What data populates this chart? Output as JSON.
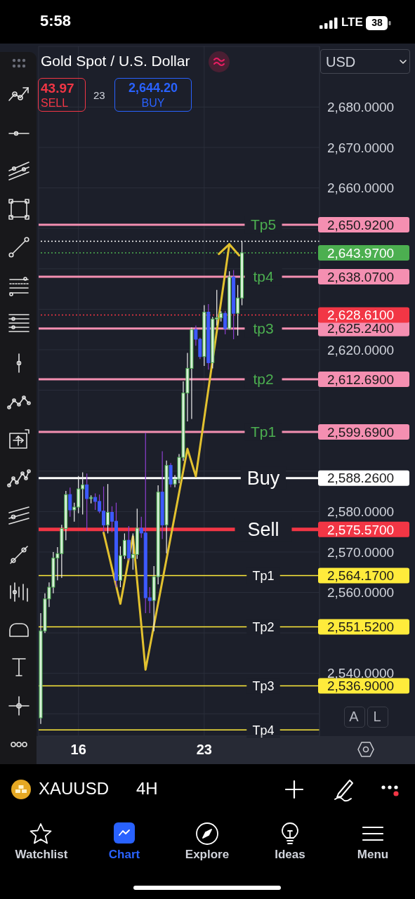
{
  "chart_data": {
    "type": "candlestick",
    "title": "Gold Spot / U.S. Dollar",
    "categories": [
      null,
      null,
      null,
      null,
      null,
      null,
      null,
      null,
      null,
      "16",
      null,
      null,
      null,
      null,
      null,
      null,
      null,
      null,
      null,
      null,
      null,
      null,
      null,
      null,
      null,
      null,
      null,
      null,
      null,
      null,
      null,
      null,
      null,
      null,
      null,
      null,
      null,
      null,
      null,
      "23",
      null,
      null,
      null,
      null,
      null,
      null,
      null,
      null,
      null,
      null,
      null,
      null,
      null,
      null,
      null,
      null,
      null,
      null,
      null,
      null,
      null,
      null,
      null,
      null,
      null,
      null,
      null
    ],
    "ohlc": [
      [
        2529.0,
        2554.9,
        2527.5,
        2550.5
      ],
      [
        2550.5,
        2559.8,
        2550.0,
        2558.4
      ],
      [
        2558.4,
        2562.5,
        2556.4,
        2561.3
      ],
      [
        2561.3,
        2570.0,
        2559.8,
        2568.5
      ],
      [
        2568.5,
        2571.2,
        2563.0,
        2569.6
      ],
      [
        2569.6,
        2576.7,
        2563.6,
        2575.8
      ],
      [
        2575.8,
        2585.1,
        2572.9,
        2584.2
      ],
      [
        2584.2,
        2585.9,
        2578.7,
        2580.4
      ],
      [
        2580.4,
        2582.2,
        2577.5,
        2581.1
      ],
      [
        2581.1,
        2588.8,
        2579.6,
        2585.6
      ],
      [
        2585.6,
        2589.7,
        2579.3,
        2586.6
      ],
      [
        2586.6,
        2589.4,
        2575.2,
        2583.2
      ],
      [
        2583.2,
        2584.0,
        2582.0,
        2583.5
      ],
      [
        2583.5,
        2584.5,
        2580.4,
        2582.5
      ],
      [
        2582.5,
        2584.2,
        2579.6,
        2580.1
      ],
      [
        2580.1,
        2586.2,
        2574.9,
        2576.7
      ],
      [
        2576.7,
        2586.8,
        2574.6,
        2579.8
      ],
      [
        2579.8,
        2581.3,
        2574.9,
        2577.6
      ],
      [
        2577.6,
        2582.2,
        2561.3,
        2563.0
      ],
      [
        2563.0,
        2571.4,
        2561.3,
        2569.1
      ],
      [
        2569.1,
        2574.6,
        2568.3,
        2572.9
      ],
      [
        2572.9,
        2576.4,
        2567.9,
        2568.5
      ],
      [
        2568.5,
        2574.6,
        2565.6,
        2569.4
      ],
      [
        2569.4,
        2580.7,
        2568.3,
        2575.9
      ],
      [
        2575.9,
        2578.7,
        2573.5,
        2574.7
      ],
      [
        2574.7,
        2599.5,
        2554.9,
        2558.7
      ],
      [
        2558.7,
        2561.3,
        2554.9,
        2558.0
      ],
      [
        2558.0,
        2566.5,
        2550.4,
        2563.9
      ],
      [
        2563.9,
        2586.5,
        2562.0,
        2584.8
      ],
      [
        2584.8,
        2594.9,
        2573.2,
        2576.7
      ],
      [
        2576.7,
        2592.6,
        2569.7,
        2591.4
      ],
      [
        2591.4,
        2592.0,
        2586.0,
        2586.8
      ],
      [
        2586.8,
        2589.0,
        2586.0,
        2588.0
      ],
      [
        2588.0,
        2594.2,
        2587.0,
        2593.4
      ],
      [
        2593.4,
        2612.2,
        2592.5,
        2609.3
      ],
      [
        2609.3,
        2619.2,
        2602.3,
        2615.4
      ],
      [
        2615.4,
        2625.5,
        2602.9,
        2625.0
      ],
      [
        2625.0,
        2626.0,
        2621.0,
        2622.6
      ],
      [
        2622.6,
        2623.0,
        2617.7,
        2618.3
      ],
      [
        2618.3,
        2631.0,
        2616.0,
        2629.3
      ],
      [
        2629.3,
        2631.3,
        2615.1,
        2616.8
      ],
      [
        2616.8,
        2628.1,
        2615.4,
        2627.6
      ],
      [
        2627.6,
        2634.8,
        2626.0,
        2627.9
      ],
      [
        2627.9,
        2629.5,
        2627.0,
        2629.0
      ],
      [
        2629.0,
        2629.6,
        2623.8,
        2625.2
      ],
      [
        2625.2,
        2639.4,
        2625.0,
        2638.0
      ],
      [
        2638.0,
        2639.7,
        2622.6,
        2629.0
      ],
      [
        2629.0,
        2636.0,
        2623.5,
        2632.8
      ],
      [
        2632.8,
        2646.8,
        2631.0,
        2643.97
      ],
      null,
      null,
      null,
      null,
      null,
      null,
      null,
      null,
      null,
      null,
      null,
      null,
      null,
      null,
      null,
      null,
      null,
      null
    ],
    "colors": [
      "#4caf50",
      "#4caf50",
      "#4caf50",
      "#4caf50",
      "#4caf50",
      "#4caf50",
      "#4caf50",
      "#3d5afe",
      "#4caf50",
      "#4caf50",
      "#4caf50",
      "#3d5afe",
      "#4caf50",
      "#3d5afe",
      "#3d5afe",
      "#3d5afe",
      "#4caf50",
      "#3d5afe",
      "#3d5afe",
      "#4caf50",
      "#4caf50",
      "#3d5afe",
      "#4caf50",
      "#4caf50",
      "#3d5afe",
      "#3d5afe",
      "#3d5afe",
      "#4caf50",
      "#4caf50",
      "#3d5afe",
      "#4caf50",
      "#3d5afe",
      "#4caf50",
      "#4caf50",
      "#4caf50",
      "#4caf50",
      "#4caf50",
      "#3d5afe",
      "#3d5afe",
      "#4caf50",
      "#3d5afe",
      "#4caf50",
      "#4caf50",
      "#4caf50",
      "#3d5afe",
      "#4caf50",
      "#3d5afe",
      "#4caf50",
      "#4caf50",
      null,
      null,
      null,
      null,
      null,
      null,
      null,
      null,
      null,
      null,
      null,
      null,
      null,
      null,
      null,
      null,
      null,
      null
    ],
    "series": [
      {
        "type": "line",
        "color": "#e2c12f",
        "values": [
          null,
          null,
          null,
          null,
          null,
          null,
          null,
          null,
          null,
          null,
          null,
          null,
          null,
          null,
          null,
          2574.8,
          null,
          null,
          null,
          2557.2,
          null,
          null,
          2573.9,
          null,
          null,
          2540.9,
          null,
          null,
          null,
          null,
          null,
          null,
          null,
          null,
          null,
          2595.5,
          null,
          2588.7,
          null,
          null,
          null,
          null,
          null,
          null,
          null,
          2646.1,
          null,
          null,
          null,
          null,
          null,
          null,
          null,
          null,
          null,
          null,
          null,
          null,
          null,
          null,
          null,
          null,
          null,
          null,
          null,
          null,
          null
        ]
      }
    ],
    "ylim": [
      2524.5,
      2695
    ],
    "yticks": [
      {
        "value": 2530,
        "label": null
      },
      {
        "value": 2540,
        "label": "2,540.0000"
      },
      {
        "value": 2550,
        "label": null
      },
      {
        "value": 2560,
        "label": "2,560.0000"
      },
      {
        "value": 2570,
        "label": "2,570.0000"
      },
      {
        "value": 2580,
        "label": "2,580.0000"
      },
      {
        "value": 2590,
        "label": null
      },
      {
        "value": 2600,
        "label": null
      },
      {
        "value": 2610,
        "label": null
      },
      {
        "value": 2620,
        "label": "2,620.0000"
      },
      {
        "value": 2630,
        "label": null
      },
      {
        "value": 2640,
        "label": null
      },
      {
        "value": 2650,
        "label": null
      },
      {
        "value": 2660,
        "label": "2,660.0000"
      },
      {
        "value": 2670,
        "label": "2,670.0000"
      },
      {
        "value": 2680,
        "label": "2,680.0000"
      }
    ],
    "grid": true,
    "ref_lines": [
      {
        "axis": "y",
        "value": 2650.92,
        "label": "Tp5",
        "color": "#f48fb1"
      },
      {
        "axis": "y",
        "value": 2646.8,
        "color": "#ffffff",
        "line_style": "dotted"
      },
      {
        "axis": "y",
        "value": 2643.97,
        "color": "#4caf50",
        "line_style": "dotted"
      },
      {
        "axis": "y",
        "value": 2638.07,
        "label": "tp4",
        "color": "#f48fb1"
      },
      {
        "axis": "y",
        "value": 2628.61,
        "color": "#f23645",
        "line_style": "dotted"
      },
      {
        "axis": "y",
        "value": 2625.24,
        "label": "tp3",
        "color": "#f48fb1"
      },
      {
        "axis": "y",
        "value": 2612.69,
        "label": "tp2",
        "color": "#f48fb1"
      },
      {
        "axis": "y",
        "value": 2599.69,
        "label": "Tp1",
        "color": "#f48fb1"
      },
      {
        "axis": "y",
        "value": 2588.26,
        "label": "Buy",
        "color": "#ffffff"
      },
      {
        "axis": "y",
        "value": 2575.57,
        "label": "Sell",
        "color": "#f23645"
      },
      {
        "axis": "y",
        "value": 2564.17,
        "label": "Tp1",
        "color": "#ffeb3b"
      },
      {
        "axis": "y",
        "value": 2551.52,
        "label": "Tp2",
        "color": "#ffeb3b"
      },
      {
        "axis": "y",
        "value": 2536.9,
        "label": "Tp3",
        "color": "#ffeb3b"
      },
      {
        "axis": "y",
        "value": 2526,
        "label": "Tp4",
        "color": "#ffeb3b"
      }
    ],
    "annotations": [
      "5:58",
      "LTE",
      "38",
      "USD",
      "43.97",
      "SELL",
      "23",
      "2,644.20",
      "BUY",
      "A",
      "L",
      "XAUUSD",
      "4H",
      "Watchlist",
      "Chart",
      "Explore",
      "Ideas",
      "Menu",
      "2,650.9200",
      "2,643.9700",
      "2,638.0700",
      "2,625.2400",
      "2,628.6100",
      "2,612.6900",
      "2,599.6900",
      "2,588.2600",
      "2,575.5700",
      "2,564.1700",
      "2,551.5200",
      "2,536.9000"
    ]
  }
}
